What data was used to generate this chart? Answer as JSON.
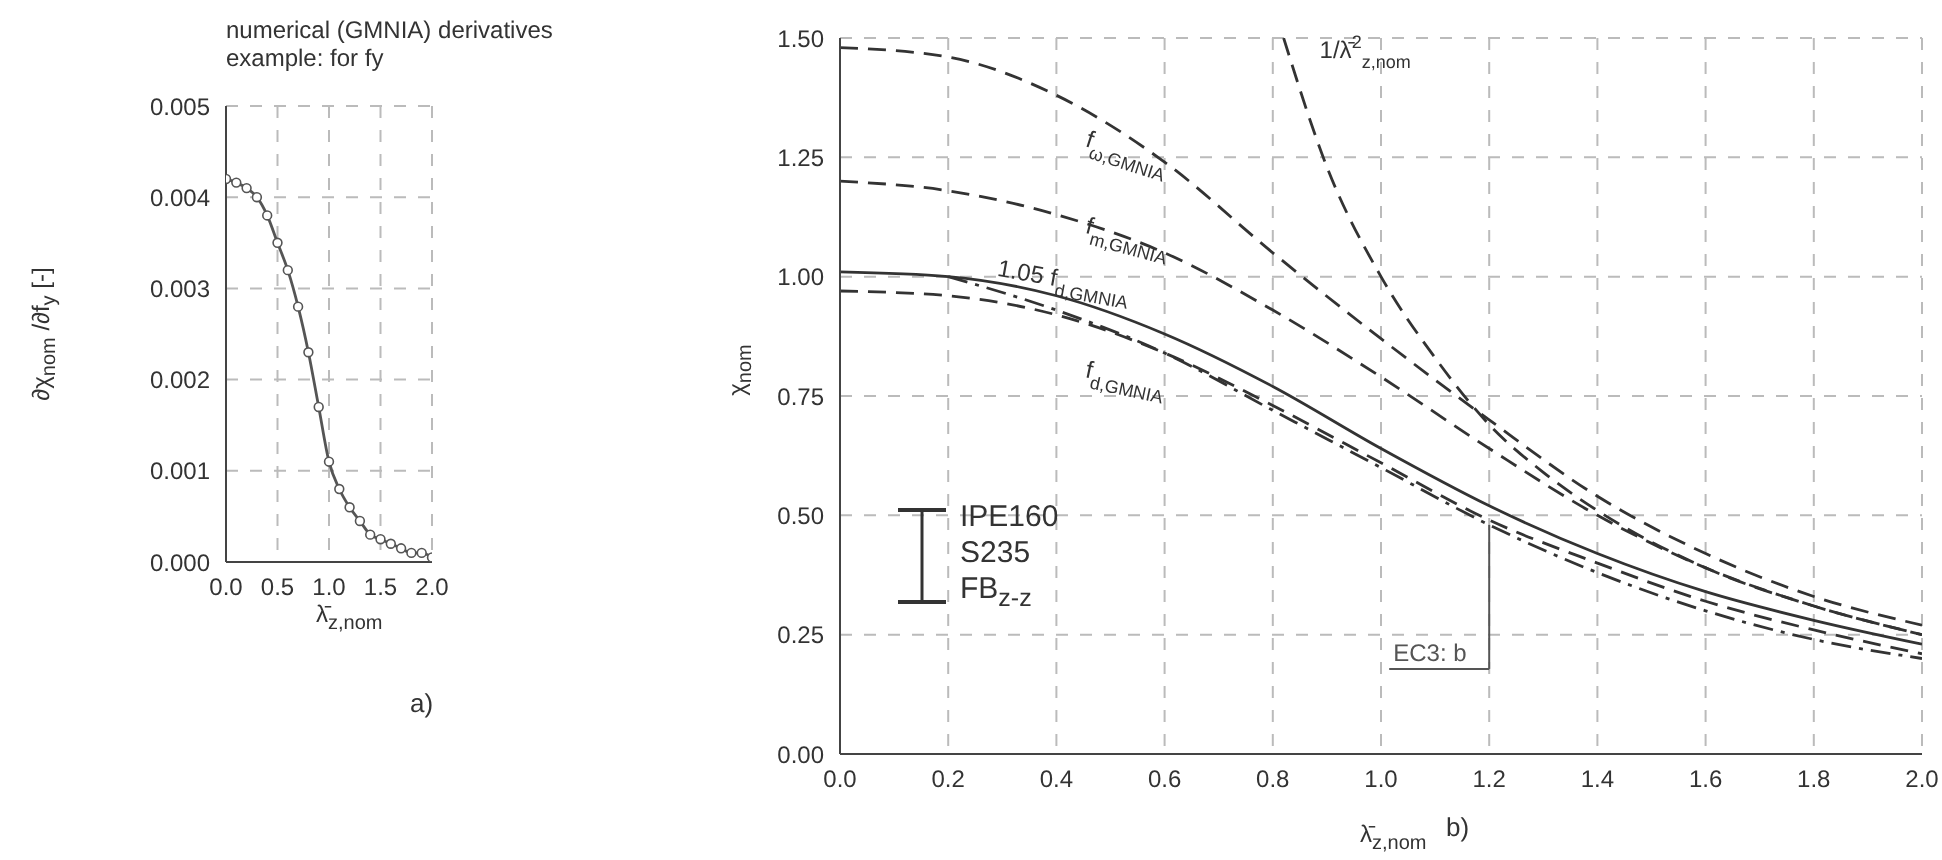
{
  "chart_data": [
    {
      "type": "line",
      "title": "numerical (GMNIA) derivatives",
      "subtitle": "example: for fy",
      "xlabel": "λ̄$_{z,nom}$",
      "ylabel": "∂χ$_{nom}$ /∂f$_{y}$ [-]",
      "x": [
        0,
        0.1,
        0.2,
        0.3,
        0.4,
        0.5,
        0.6,
        0.7,
        0.8,
        0.9,
        1.0,
        1.1,
        1.2,
        1.3,
        1.4,
        1.5,
        1.6,
        1.7,
        1.8,
        1.9,
        2.0
      ],
      "series": [
        {
          "color": "#555555",
          "values": [
            0.0042,
            0.00416,
            0.0041,
            0.004,
            0.0038,
            0.0035,
            0.0032,
            0.0028,
            0.0023,
            0.0017,
            0.0011,
            0.0008,
            0.0006,
            0.00045,
            0.0003,
            0.00025,
            0.0002,
            0.00015,
            0.0001,
            0.0001,
            5e-05
          ]
        }
      ],
      "xlim": [
        0,
        2
      ],
      "xticks": [
        {
          "value": 0,
          "label": "0.0"
        },
        {
          "value": 0.5,
          "label": "0.5"
        },
        {
          "value": 1,
          "label": "1.0"
        },
        {
          "value": 1.5,
          "label": "1.5"
        },
        {
          "value": 2,
          "label": "2.0"
        }
      ],
      "ylim": [
        0,
        0.005
      ],
      "yticks": [
        {
          "value": 0,
          "label": "0.000"
        },
        0.001,
        0.002,
        0.003,
        0.004,
        0.005
      ],
      "grid": true,
      "marker": "circle",
      "line_style": "solid",
      "annotations": [
        "a)"
      ]
    },
    {
      "type": "line",
      "xlabel": "λ̄$_{z,nom}$",
      "ylabel": "χ$_{nom}$",
      "x": [
        0,
        0.2,
        0.4,
        0.6,
        0.8,
        1.0,
        1.2,
        1.4,
        1.6,
        1.8,
        2.0
      ],
      "series": [
        {
          "name": "f$_{ω,GMNIA}$",
          "color": "#333333",
          "line_style": "dashed",
          "values": [
            1.48,
            1.46,
            1.38,
            1.24,
            1.05,
            0.87,
            0.7,
            0.54,
            0.42,
            0.33,
            0.27
          ]
        },
        {
          "name": "f$_{m,GMNIA}$",
          "color": "#333333",
          "line_style": "dashed",
          "values": [
            1.2,
            1.18,
            1.13,
            1.05,
            0.93,
            0.79,
            0.64,
            0.5,
            0.39,
            0.31,
            0.25
          ]
        },
        {
          "name": "1/λ̄$^{2}$$_{z,nom}$",
          "color": "#333333",
          "line_style": "dashed",
          "x": [
            0.82,
            0.9,
            1.0,
            1.1,
            1.2,
            1.3,
            1.4,
            1.6,
            1.8,
            2.0
          ],
          "values": [
            1.5,
            1.23,
            1.0,
            0.83,
            0.69,
            0.59,
            0.51,
            0.39,
            0.31,
            0.25
          ]
        },
        {
          "name": "1.05 f$_{d,GMNIA}$",
          "color": "#333333",
          "line_style": "solid",
          "values": [
            1.01,
            1.0,
            0.96,
            0.88,
            0.77,
            0.64,
            0.52,
            0.42,
            0.34,
            0.28,
            0.23
          ]
        },
        {
          "name": "EC3: b",
          "color": "#333333",
          "line_style": "dashdot",
          "x": [
            0.2,
            0.4,
            0.6,
            0.8,
            1.0,
            1.2,
            1.4,
            1.6,
            1.8,
            2.0
          ],
          "values": [
            1.0,
            0.93,
            0.84,
            0.72,
            0.6,
            0.48,
            0.38,
            0.3,
            0.24,
            0.2
          ]
        },
        {
          "name": "f$_{d,GMNIA}$",
          "color": "#333333",
          "line_style": "dashed",
          "values": [
            0.97,
            0.96,
            0.92,
            0.84,
            0.73,
            0.61,
            0.49,
            0.4,
            0.32,
            0.26,
            0.21
          ]
        }
      ],
      "xlim": [
        0,
        2
      ],
      "xticks": [
        {
          "value": 0,
          "label": "0.0"
        },
        {
          "value": 0.2,
          "label": "0.2"
        },
        {
          "value": 0.4,
          "label": "0.4"
        },
        {
          "value": 0.6,
          "label": "0.6"
        },
        {
          "value": 0.8,
          "label": "0.8"
        },
        {
          "value": 1,
          "label": "1.0"
        },
        {
          "value": 1.2,
          "label": "1.2"
        },
        {
          "value": 1.4,
          "label": "1.4"
        },
        {
          "value": 1.6,
          "label": "1.6"
        },
        {
          "value": 1.8,
          "label": "1.8"
        },
        {
          "value": 2,
          "label": "2.0"
        }
      ],
      "ylim": [
        0,
        1.5
      ],
      "yticks": [
        {
          "value": 0,
          "label": "0.00"
        },
        0.25,
        {
          "value": 0.5,
          "label": "0.50"
        },
        {
          "value": 0.75,
          "label": "0.75"
        },
        {
          "value": 1,
          "label": "1.00"
        },
        1.25,
        {
          "value": 1.5,
          "label": "1.50"
        }
      ],
      "grid": true,
      "marker": "none",
      "annotations": [
        "IPE160",
        "S235",
        "FB$_{z-z}$",
        "b)"
      ]
    }
  ]
}
